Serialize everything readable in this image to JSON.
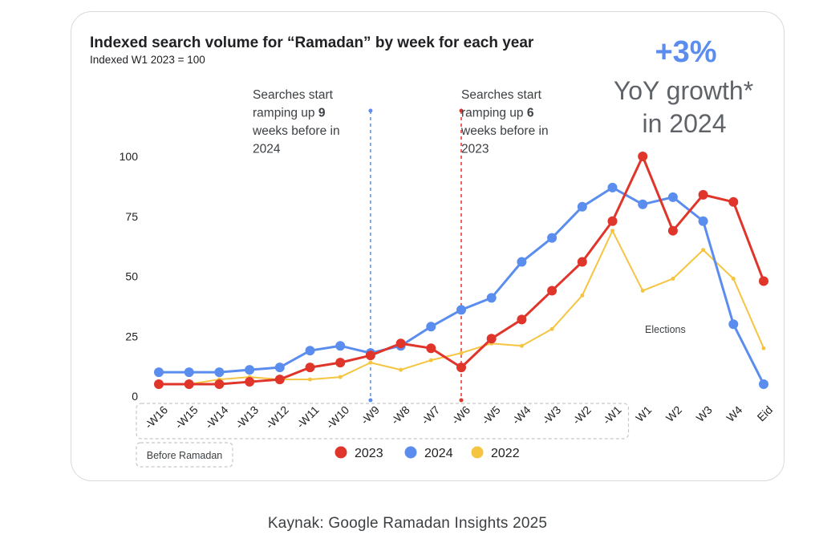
{
  "caption": "Kaynak: Google Ramadan Insights 2025",
  "colors": {
    "2023": "#e0352b",
    "2024": "#5b8def",
    "2022": "#f5c542",
    "highlight": "#5b8def",
    "text": "#202124",
    "muted": "#5f6368"
  },
  "chart_data": {
    "type": "line",
    "title": "Indexed search volume for “Ramadan” by week for each year",
    "subtitle": "Indexed W1 2023 = 100",
    "categories": [
      "-W16",
      "-W15",
      "-W14",
      "-W13",
      "-W12",
      "-W11",
      "-W10",
      "-W9",
      "-W8",
      "-W7",
      "-W6",
      "-W5",
      "-W4",
      "-W3",
      "-W2",
      "-W1",
      "W1",
      "W2",
      "W3",
      "W4",
      "Eid"
    ],
    "yticks": [
      0,
      25,
      50,
      75,
      100
    ],
    "ylim": [
      0,
      100
    ],
    "grid": false,
    "legend_position": "bottom",
    "series": [
      {
        "name": "2023",
        "color": "#e0352b",
        "values": [
          5,
          5,
          5,
          6,
          7,
          12,
          14,
          17,
          22,
          20,
          12,
          24,
          32,
          44,
          56,
          73,
          100,
          69,
          84,
          81,
          48
        ]
      },
      {
        "name": "2024",
        "color": "#5b8def",
        "values": [
          10,
          10,
          10,
          11,
          12,
          19,
          21,
          18,
          21,
          29,
          36,
          41,
          56,
          66,
          79,
          87,
          80,
          83,
          73,
          30,
          5
        ]
      },
      {
        "name": "2022",
        "color": "#f5c542",
        "values": [
          5,
          5,
          7,
          8,
          7,
          7,
          8,
          14,
          11,
          15,
          18,
          22,
          21,
          28,
          42,
          69,
          44,
          49,
          61,
          49,
          20
        ]
      }
    ],
    "markers": [
      {
        "at": "-W9",
        "color": "#5b8def",
        "line1": "Searches start",
        "line2_prefix": "ramping up ",
        "line2_bold": "9",
        "line3": "weeks before in",
        "line4": "2024"
      },
      {
        "at": "-W6",
        "color": "#e0352b",
        "line1": "Searches start",
        "line2_prefix": "ramping up ",
        "line2_bold": "6",
        "line3": "weeks before in",
        "line4": "2023"
      }
    ],
    "annotations": {
      "growth": "+3%",
      "growth_line1": "YoY growth*",
      "growth_line2": "in 2024",
      "elections": "Elections",
      "before_ramadan": "Before Ramadan"
    }
  }
}
